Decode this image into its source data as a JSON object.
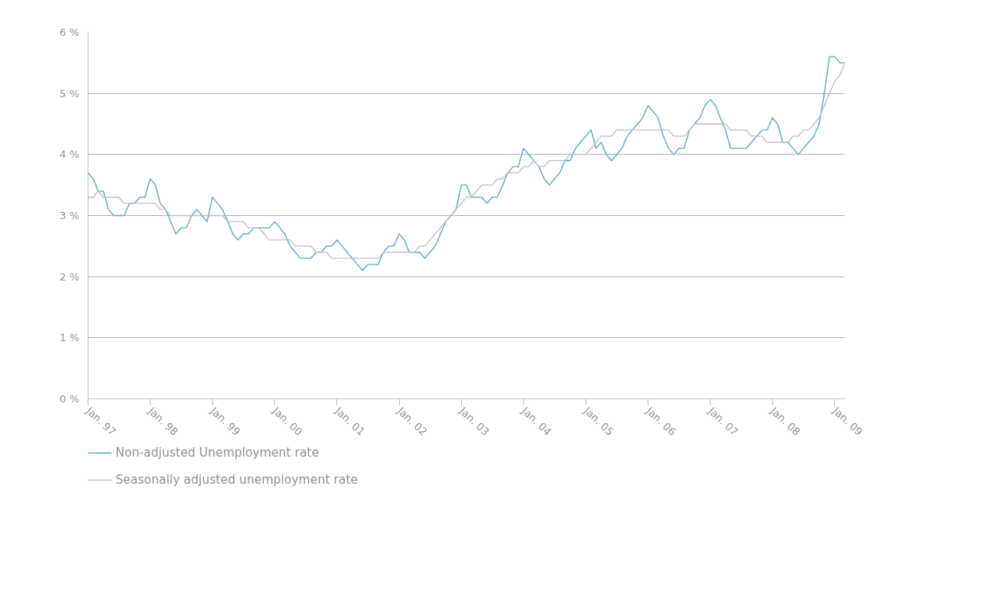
{
  "chart_data": {
    "type": "line",
    "x": [
      "1997-01",
      "1997-02",
      "1997-03",
      "1997-04",
      "1997-05",
      "1997-06",
      "1997-07",
      "1997-08",
      "1997-09",
      "1997-10",
      "1997-11",
      "1997-12",
      "1998-01",
      "1998-02",
      "1998-03",
      "1998-04",
      "1998-05",
      "1998-06",
      "1998-07",
      "1998-08",
      "1998-09",
      "1998-10",
      "1998-11",
      "1998-12",
      "1999-01",
      "1999-02",
      "1999-03",
      "1999-04",
      "1999-05",
      "1999-06",
      "1999-07",
      "1999-08",
      "1999-09",
      "1999-10",
      "1999-11",
      "1999-12",
      "2000-01",
      "2000-02",
      "2000-03",
      "2000-04",
      "2000-05",
      "2000-06",
      "2000-07",
      "2000-08",
      "2000-09",
      "2000-10",
      "2000-11",
      "2000-12",
      "2001-01",
      "2001-02",
      "2001-03",
      "2001-04",
      "2001-05",
      "2001-06",
      "2001-07",
      "2001-08",
      "2001-09",
      "2001-10",
      "2001-11",
      "2001-12",
      "2002-01",
      "2002-02",
      "2002-03",
      "2002-04",
      "2002-05",
      "2002-06",
      "2002-07",
      "2002-08",
      "2002-09",
      "2002-10",
      "2002-11",
      "2002-12",
      "2003-01",
      "2003-02",
      "2003-03",
      "2003-04",
      "2003-05",
      "2003-06",
      "2003-07",
      "2003-08",
      "2003-09",
      "2003-10",
      "2003-11",
      "2003-12",
      "2004-01",
      "2004-02",
      "2004-03",
      "2004-04",
      "2004-05",
      "2004-06",
      "2004-07",
      "2004-08",
      "2004-09",
      "2004-10",
      "2004-11",
      "2004-12",
      "2005-01",
      "2005-02",
      "2005-03",
      "2005-04",
      "2005-05",
      "2005-06",
      "2005-07",
      "2005-08",
      "2005-09",
      "2005-10",
      "2005-11",
      "2005-12",
      "2006-01",
      "2006-02",
      "2006-03",
      "2006-04",
      "2006-05",
      "2006-06",
      "2006-07",
      "2006-08",
      "2006-09",
      "2006-10",
      "2006-11",
      "2006-12",
      "2007-01",
      "2007-02",
      "2007-03",
      "2007-04",
      "2007-05",
      "2007-06",
      "2007-07",
      "2007-08",
      "2007-09",
      "2007-10",
      "2007-11",
      "2007-12",
      "2008-01",
      "2008-02",
      "2008-03",
      "2008-04",
      "2008-05",
      "2008-06",
      "2008-07",
      "2008-08",
      "2008-09",
      "2008-10",
      "2008-11",
      "2008-12",
      "2009-01",
      "2009-02",
      "2009-03"
    ],
    "xlim": [
      "1997-01",
      "2009-03"
    ],
    "xticks": [
      {
        "value": "1997-01",
        "label": "Jan. 97"
      },
      {
        "value": "1998-01",
        "label": "Jan. 98"
      },
      {
        "value": "1999-01",
        "label": "Jan. 99"
      },
      {
        "value": "2000-01",
        "label": "Jan. 00"
      },
      {
        "value": "2001-01",
        "label": "Jan. 01"
      },
      {
        "value": "2002-01",
        "label": "Jan. 02"
      },
      {
        "value": "2003-01",
        "label": "Jan. 03"
      },
      {
        "value": "2004-01",
        "label": "Jan. 04"
      },
      {
        "value": "2005-01",
        "label": "Jan. 05"
      },
      {
        "value": "2006-01",
        "label": "Jan. 06"
      },
      {
        "value": "2007-01",
        "label": "Jan. 07"
      },
      {
        "value": "2008-01",
        "label": "Jan. 08"
      },
      {
        "value": "2009-01",
        "label": "Jan. 09"
      }
    ],
    "ylim": [
      0,
      6
    ],
    "yticks": [
      {
        "value": 0,
        "label": "0 %"
      },
      {
        "value": 1,
        "label": "1 %"
      },
      {
        "value": 2,
        "label": "2 %"
      },
      {
        "value": 3,
        "label": "3 %"
      },
      {
        "value": 4,
        "label": "4 %"
      },
      {
        "value": 5,
        "label": "5 %"
      },
      {
        "value": 6,
        "label": "6 %"
      }
    ],
    "grid": "y",
    "legend": "bottom",
    "marker": "none",
    "line_style": "solid",
    "series": [
      {
        "name": "Non-adjusted Unemployment rate",
        "color": "#5aaac4",
        "values": [
          3.7,
          3.6,
          3.4,
          3.4,
          3.1,
          3.0,
          3.0,
          3.0,
          3.2,
          3.2,
          3.3,
          3.3,
          3.6,
          3.5,
          3.2,
          3.1,
          2.9,
          2.7,
          2.8,
          2.8,
          3.0,
          3.1,
          3.0,
          2.9,
          3.3,
          3.2,
          3.1,
          2.9,
          2.7,
          2.6,
          2.7,
          2.7,
          2.8,
          2.8,
          2.8,
          2.8,
          2.9,
          2.8,
          2.7,
          2.5,
          2.4,
          2.3,
          2.3,
          2.3,
          2.4,
          2.4,
          2.5,
          2.5,
          2.6,
          2.5,
          2.4,
          2.3,
          2.2,
          2.1,
          2.2,
          2.2,
          2.2,
          2.4,
          2.5,
          2.5,
          2.7,
          2.6,
          2.4,
          2.4,
          2.4,
          2.3,
          2.4,
          2.5,
          2.7,
          2.9,
          3.0,
          3.1,
          3.5,
          3.5,
          3.3,
          3.3,
          3.3,
          3.2,
          3.3,
          3.3,
          3.5,
          3.7,
          3.8,
          3.8,
          4.1,
          4.0,
          3.9,
          3.8,
          3.6,
          3.5,
          3.6,
          3.7,
          3.9,
          3.9,
          4.1,
          4.2,
          4.3,
          4.4,
          4.1,
          4.2,
          4.0,
          3.9,
          4.0,
          4.1,
          4.3,
          4.4,
          4.5,
          4.6,
          4.8,
          4.7,
          4.6,
          4.3,
          4.1,
          4.0,
          4.1,
          4.1,
          4.4,
          4.5,
          4.6,
          4.8,
          4.9,
          4.8,
          4.6,
          4.4,
          4.1,
          4.1,
          4.1,
          4.1,
          4.2,
          4.3,
          4.4,
          4.4,
          4.6,
          4.5,
          4.2,
          4.2,
          4.1,
          4.0,
          4.1,
          4.2,
          4.3,
          4.5,
          5.0,
          5.6,
          5.6,
          5.5,
          5.5
        ]
      },
      {
        "name": "Seasonally adjusted unemployment rate",
        "color": "#c0c0c8",
        "values": [
          3.3,
          3.3,
          3.4,
          3.3,
          3.3,
          3.3,
          3.3,
          3.2,
          3.2,
          3.2,
          3.2,
          3.2,
          3.2,
          3.2,
          3.1,
          3.1,
          3.0,
          3.0,
          3.0,
          3.0,
          3.0,
          3.0,
          3.0,
          3.0,
          3.0,
          3.0,
          3.0,
          2.9,
          2.9,
          2.9,
          2.9,
          2.8,
          2.8,
          2.8,
          2.7,
          2.6,
          2.6,
          2.6,
          2.6,
          2.6,
          2.5,
          2.5,
          2.5,
          2.5,
          2.4,
          2.4,
          2.4,
          2.3,
          2.3,
          2.3,
          2.3,
          2.3,
          2.3,
          2.3,
          2.3,
          2.3,
          2.3,
          2.4,
          2.4,
          2.4,
          2.4,
          2.4,
          2.4,
          2.4,
          2.5,
          2.5,
          2.6,
          2.7,
          2.8,
          2.9,
          3.0,
          3.1,
          3.2,
          3.3,
          3.3,
          3.4,
          3.5,
          3.5,
          3.5,
          3.6,
          3.6,
          3.7,
          3.7,
          3.7,
          3.8,
          3.8,
          3.9,
          3.8,
          3.8,
          3.9,
          3.9,
          3.9,
          3.9,
          4.0,
          4.0,
          4.0,
          4.0,
          4.1,
          4.2,
          4.3,
          4.3,
          4.3,
          4.4,
          4.4,
          4.4,
          4.4,
          4.4,
          4.4,
          4.4,
          4.4,
          4.4,
          4.4,
          4.4,
          4.3,
          4.3,
          4.3,
          4.4,
          4.5,
          4.5,
          4.5,
          4.5,
          4.5,
          4.5,
          4.5,
          4.4,
          4.4,
          4.4,
          4.4,
          4.3,
          4.3,
          4.3,
          4.2,
          4.2,
          4.2,
          4.2,
          4.2,
          4.3,
          4.3,
          4.4,
          4.4,
          4.5,
          4.6,
          4.8,
          5.0,
          5.2,
          5.3,
          5.5
        ]
      }
    ]
  }
}
